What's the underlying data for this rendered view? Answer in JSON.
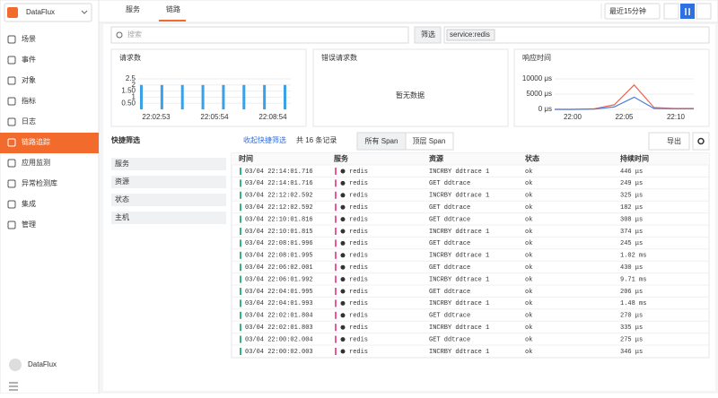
{
  "sidebar": {
    "brand": "DataFlux",
    "menu": [
      "场景",
      "事件",
      "对象",
      "指标",
      "日志",
      "链路追踪",
      "应用监测",
      "异常检测库",
      "集成",
      "管理"
    ],
    "active": 5,
    "user": "DataFlux"
  },
  "tabs": [
    "服务",
    "链路"
  ],
  "active_tab": 1,
  "time_range": "最近15分钟",
  "search": {
    "placeholder": "搜索",
    "filter_button": "筛选",
    "tag": "service:redis"
  },
  "cards": [
    {
      "title": "请求数",
      "yticks": [
        {
          "value": 0.5,
          "label": "0.50"
        },
        1,
        {
          "value": 1.5,
          "label": "1.50"
        },
        2,
        2.5
      ],
      "ylim": [
        0,
        2.5
      ],
      "xlabels": [
        "22:02:53",
        "22:05:54",
        "22:08:54"
      ],
      "values": [
        2,
        2,
        2,
        2,
        2,
        2,
        2,
        2
      ],
      "color": "#3aa0e8"
    },
    {
      "title": "错误请求数",
      "empty": "暂无数据"
    },
    {
      "title": "响应时间",
      "yticks": [
        {
          "value": 0,
          "label": "0 μs"
        },
        {
          "value": 5000,
          "label": "5000 μs"
        },
        {
          "value": 10000,
          "label": "10000 μs"
        }
      ],
      "ylim": [
        0,
        10000
      ],
      "xlabels": [
        "22:00",
        "22:05",
        "22:10"
      ],
      "series": [
        {
          "color": "#e8664f",
          "values": [
            0,
            0,
            200,
            1500,
            8000,
            600,
            300,
            300
          ]
        },
        {
          "color": "#4a7de0",
          "values": [
            0,
            0,
            100,
            800,
            4000,
            300,
            200,
            200
          ]
        }
      ]
    }
  ],
  "quick_filter": {
    "title": "快捷筛选",
    "groups": [
      "服务",
      "资源",
      "状态",
      "主机"
    ]
  },
  "toolbar": {
    "collapse": "收起快捷筛选",
    "count": "共 16 条记录",
    "span_tabs": [
      "所有 Span",
      "顶层 Span"
    ],
    "export": "导出"
  },
  "table": {
    "columns": [
      "时间",
      "服务",
      "资源",
      "状态",
      "持续时间"
    ],
    "rows": [
      [
        "03/04 22:14:01.716",
        "redis",
        "INCRBY ddtrace 1",
        "ok",
        "446 μs"
      ],
      [
        "03/04 22:14:01.716",
        "redis",
        "GET ddtrace",
        "ok",
        "249 μs"
      ],
      [
        "03/04 22:12:02.592",
        "redis",
        "INCRBY ddtrace 1",
        "ok",
        "325 μs"
      ],
      [
        "03/04 22:12:02.592",
        "redis",
        "GET ddtrace",
        "ok",
        "182 μs"
      ],
      [
        "03/04 22:10:01.816",
        "redis",
        "GET ddtrace",
        "ok",
        "308 μs"
      ],
      [
        "03/04 22:10:01.815",
        "redis",
        "INCRBY ddtrace 1",
        "ok",
        "374 μs"
      ],
      [
        "03/04 22:08:01.996",
        "redis",
        "GET ddtrace",
        "ok",
        "245 μs"
      ],
      [
        "03/04 22:08:01.995",
        "redis",
        "INCRBY ddtrace 1",
        "ok",
        "1.02 ms"
      ],
      [
        "03/04 22:06:02.001",
        "redis",
        "GET ddtrace",
        "ok",
        "430 μs"
      ],
      [
        "03/04 22:06:01.992",
        "redis",
        "INCRBY ddtrace 1",
        "ok",
        "9.71 ms"
      ],
      [
        "03/04 22:04:01.995",
        "redis",
        "GET ddtrace",
        "ok",
        "206 μs"
      ],
      [
        "03/04 22:04:01.993",
        "redis",
        "INCRBY ddtrace 1",
        "ok",
        "1.48 ms"
      ],
      [
        "03/04 22:02:01.804",
        "redis",
        "GET ddtrace",
        "ok",
        "270 μs"
      ],
      [
        "03/04 22:02:01.803",
        "redis",
        "INCRBY ddtrace 1",
        "ok",
        "335 μs"
      ],
      [
        "03/04 22:00:02.004",
        "redis",
        "GET ddtrace",
        "ok",
        "275 μs"
      ],
      [
        "03/04 22:00:02.003",
        "redis",
        "INCRBY ddtrace 1",
        "ok",
        "346 μs"
      ]
    ]
  }
}
